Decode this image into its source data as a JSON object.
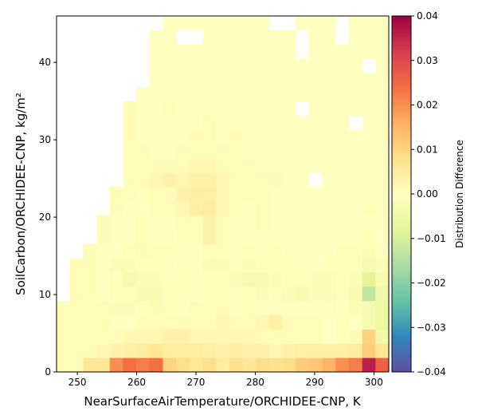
{
  "chart_data": {
    "type": "heatmap",
    "xlabel": "NearSurfaceAirTemperature/ORCHIDEE-CNP,  K",
    "ylabel": "SoilCarbon/ORCHIDEE-CNP,  kg/m²",
    "colorbar_label": "Distribution Difference",
    "colormap": "Spectral_r",
    "colorbar_range": [
      -0.04,
      0.04
    ],
    "colorbar_ticks": [
      "0.04",
      "0.03",
      "0.02",
      "0.01",
      "0.00",
      "−0.01",
      "−0.02",
      "−0.03",
      "−0.04"
    ],
    "xlim": [
      246.5,
      302.5
    ],
    "ylim": [
      0,
      46
    ],
    "x_ticks": [
      "250",
      "260",
      "270",
      "280",
      "290",
      "300"
    ],
    "y_ticks": [
      "0",
      "10",
      "20",
      "30",
      "40"
    ],
    "x_bin_start": 246.5,
    "x_bin_width": 2.24,
    "y_bin_width": 1.84,
    "n_x_bins": 25,
    "n_y_bins": 25,
    "grid": false,
    "legend": "colorbar-right",
    "value_rows_bottom_to_top": [
      [
        0.0008,
        0.0008,
        0.006,
        0.006,
        0.02,
        0.024,
        0.022,
        0.024,
        0.01,
        0.008,
        0.006,
        0.008,
        0.005,
        0.008,
        0.006,
        0.008,
        0.007,
        0.008,
        0.011,
        0.012,
        0.015,
        0.02,
        0.022,
        0.036,
        0.026
      ],
      [
        0.0008,
        0.0008,
        0.001,
        0.002,
        0.003,
        0.004,
        0.005,
        0.006,
        0.005,
        0.005,
        0.005,
        0.004,
        0.003,
        0.004,
        0.003,
        0.003,
        0.002,
        0.003,
        0.004,
        0.004,
        0.004,
        0.004,
        0.005,
        0.011,
        0.006
      ],
      [
        0.0008,
        0.0008,
        0.001,
        0.001,
        0.001,
        0.002,
        0.002,
        0.002,
        0.003,
        0.003,
        0.002,
        0.002,
        0.002,
        0.002,
        0.002,
        0.001,
        0.001,
        0.001,
        0.001,
        0.001,
        0.0,
        -0.001,
        -0.002,
        0.01,
        -0.004
      ],
      [
        0.0008,
        0.0008,
        0.001,
        0.001,
        0.0,
        0.0,
        0.001,
        0.001,
        0.001,
        0.001,
        0.001,
        0.001,
        0.002,
        0.001,
        0.001,
        0.002,
        0.004,
        0.001,
        0.001,
        0.001,
        0.0,
        -0.001,
        0.0,
        -0.003,
        -0.006
      ],
      [
        0.0008,
        0.0008,
        0.001,
        0.001,
        -0.002,
        -0.002,
        -0.001,
        -0.002,
        -0.001,
        0.0,
        0.001,
        0.001,
        0.001,
        0.0,
        0.001,
        0.0,
        0.0,
        0.0,
        0.0,
        0.0,
        -0.001,
        0.0,
        -0.002,
        -0.003,
        -0.006
      ],
      [
        null,
        0.0008,
        0.001,
        0.0,
        -0.001,
        -0.001,
        -0.003,
        -0.003,
        -0.001,
        -0.001,
        0.0,
        -0.001,
        -0.001,
        0.0,
        -0.001,
        -0.002,
        -0.001,
        -0.002,
        -0.003,
        -0.002,
        -0.002,
        -0.001,
        -0.003,
        -0.013,
        -0.005
      ],
      [
        null,
        0.0008,
        0.001,
        0.0,
        -0.001,
        -0.003,
        -0.002,
        -0.002,
        -0.001,
        -0.001,
        0.0,
        -0.001,
        -0.001,
        -0.002,
        -0.003,
        -0.003,
        -0.002,
        -0.001,
        -0.001,
        -0.002,
        -0.002,
        -0.001,
        -0.002,
        -0.008,
        -0.003
      ],
      [
        null,
        0.0008,
        0.001,
        0.0,
        -0.002,
        -0.002,
        -0.001,
        -0.001,
        0.0,
        -0.001,
        0.0,
        -0.002,
        -0.002,
        -0.001,
        -0.002,
        -0.001,
        -0.001,
        -0.001,
        -0.001,
        0.0,
        -0.001,
        -0.001,
        -0.001,
        -0.003,
        -0.002
      ],
      [
        null,
        null,
        0.001,
        0.0,
        0.0,
        -0.001,
        -0.002,
        -0.001,
        -0.001,
        0.0,
        0.0,
        0.001,
        0.001,
        0.0,
        -0.001,
        0.0,
        -0.001,
        0.0,
        0.0,
        0.0,
        0.0,
        -0.001,
        -0.001,
        -0.002,
        0.0
      ],
      [
        null,
        null,
        null,
        0.001,
        0.0,
        0.0,
        -0.001,
        0.0,
        0.0,
        -0.001,
        0.001,
        0.003,
        0.001,
        0.0,
        0.0,
        0.0,
        0.0,
        0.0,
        0.0,
        0.0,
        0.0,
        0.0,
        0.0,
        -0.001,
        0.0
      ],
      [
        null,
        null,
        null,
        0.001,
        0.0,
        0.0,
        -0.001,
        0.0,
        0.0,
        0.001,
        0.001,
        0.003,
        0.001,
        0.0,
        0.0,
        0.001,
        0.0,
        0.0,
        0.0,
        0.0,
        0.0,
        0.0,
        0.0,
        0.0,
        0.0
      ],
      [
        null,
        null,
        null,
        null,
        0.001,
        0.0,
        0.0,
        0.001,
        0.001,
        0.002,
        0.004,
        0.005,
        0.002,
        0.001,
        0.0,
        0.001,
        0.0,
        0.0,
        0.0,
        0.0,
        0.0,
        0.0,
        0.0,
        -0.001,
        0.0
      ],
      [
        null,
        null,
        null,
        null,
        0.001,
        0.001,
        0.0,
        0.001,
        0.001,
        0.003,
        0.004,
        0.004,
        0.002,
        0.001,
        0.001,
        0.001,
        0.0,
        0.0,
        0.0,
        0.0,
        0.0,
        0.0,
        0.0,
        0.0,
        0.0
      ],
      [
        null,
        null,
        null,
        null,
        null,
        0.001,
        0.001,
        0.002,
        0.003,
        0.002,
        0.003,
        0.003,
        0.002,
        0.001,
        0.001,
        0.001,
        0.001,
        0.0,
        0.0,
        null,
        0.0,
        0.0,
        0.0,
        0.0,
        0.0
      ],
      [
        null,
        null,
        null,
        null,
        null,
        0.001,
        0.001,
        0.001,
        0.001,
        0.001,
        0.002,
        0.002,
        0.001,
        0.001,
        0.001,
        0.0,
        0.0,
        0.0,
        0.0,
        0.0,
        0.0,
        0.0,
        0.0,
        0.0,
        0.0
      ],
      [
        null,
        null,
        null,
        null,
        null,
        0.001,
        0.001,
        0.0,
        0.0,
        0.001,
        0.001,
        0.001,
        0.001,
        0.001,
        0.0,
        0.0,
        0.0,
        0.0,
        0.0,
        0.0,
        0.0,
        0.0,
        0.0,
        0.0,
        0.0
      ],
      [
        null,
        null,
        null,
        null,
        null,
        0.001,
        0.0,
        0.0,
        0.0,
        0.0,
        0.001,
        0.001,
        0.0,
        0.001,
        0.0,
        0.0,
        0.0,
        0.0,
        0.0,
        0.0,
        0.0,
        0.0,
        0.0,
        0.0,
        0.0
      ],
      [
        null,
        null,
        null,
        null,
        null,
        0.001,
        0.0,
        0.0,
        0.0,
        0.0,
        0.0,
        0.001,
        0.0,
        0.0,
        0.0,
        0.0,
        0.0,
        0.0,
        0.0,
        0.0,
        0.0,
        0.0,
        null,
        0.0,
        0.0
      ],
      [
        null,
        null,
        null,
        null,
        null,
        0.001,
        0.0,
        0.0,
        0.001,
        0.0,
        0.0,
        0.0,
        0.0,
        0.0,
        0.0,
        0.0,
        0.0,
        0.0,
        null,
        0.0,
        0.0,
        0.0,
        0.0,
        0.0,
        0.0
      ],
      [
        null,
        null,
        null,
        null,
        null,
        null,
        0.0,
        0.0,
        0.0,
        0.0,
        0.0,
        0.0,
        0.0,
        0.0,
        0.0,
        0.0,
        0.0,
        0.0,
        0.0,
        0.0,
        0.0,
        0.0,
        0.0,
        0.0,
        0.0
      ],
      [
        null,
        null,
        null,
        null,
        null,
        null,
        null,
        0.0,
        0.0,
        0.0,
        0.0,
        0.0,
        0.0,
        0.0,
        0.0,
        0.0,
        0.0,
        0.0,
        0.0,
        0.0,
        0.0,
        0.0,
        0.0,
        0.0,
        0.0
      ],
      [
        null,
        null,
        null,
        null,
        null,
        null,
        null,
        0.0,
        0.0,
        0.0,
        0.0,
        0.0,
        0.0,
        0.0,
        0.0,
        0.0,
        0.0,
        0.0,
        0.0,
        0.0,
        0.0,
        0.0,
        0.0,
        null,
        0.0
      ],
      [
        null,
        null,
        null,
        null,
        null,
        null,
        null,
        0.0,
        0.0,
        0.0,
        0.0,
        0.0,
        0.0,
        0.0,
        0.0,
        0.0,
        0.0,
        0.0,
        null,
        0.0,
        0.0,
        0.0,
        0.0,
        0.0,
        0.0
      ],
      [
        null,
        null,
        null,
        null,
        null,
        null,
        null,
        0.0,
        0.0,
        null,
        null,
        0.0,
        0.0,
        0.0,
        0.0,
        0.0,
        0.0,
        0.0,
        null,
        0.0,
        0.0,
        null,
        0.0,
        0.0,
        0.0
      ],
      [
        null,
        null,
        null,
        null,
        null,
        null,
        null,
        null,
        0.0,
        0.0,
        0.0,
        0.0,
        0.0,
        0.0,
        0.0,
        0.0,
        null,
        null,
        0.0,
        0.0,
        0.0,
        null,
        0.0,
        0.0,
        0.0
      ]
    ]
  }
}
